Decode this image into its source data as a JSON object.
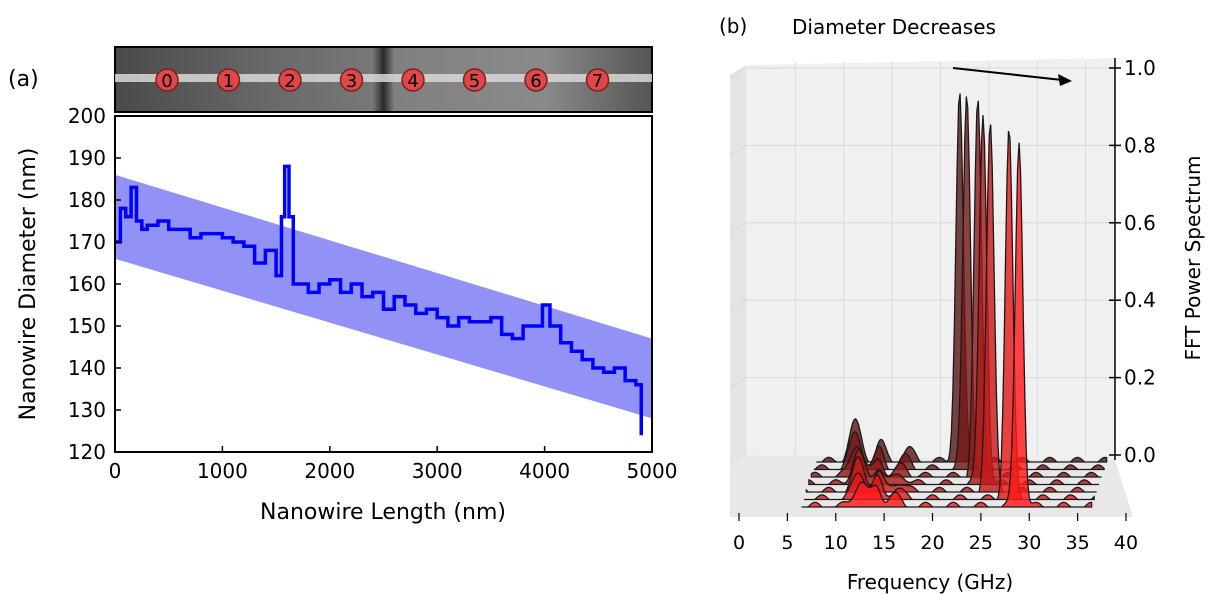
{
  "panel_a": {
    "panel_label": "(a)",
    "strip_markers": [
      "0",
      "1",
      "2",
      "3",
      "4",
      "5",
      "6",
      "7"
    ]
  },
  "panel_b": {
    "panel_label": "(b)",
    "title": "Diameter Decreases"
  },
  "colors": {
    "trace": "#0000ff",
    "band": "#7f7ff5",
    "marker": "#e04848",
    "peak_dark": "#5a1a1a",
    "peak_light": "#ff1a1a"
  },
  "chart_data": [
    {
      "type": "line",
      "title": "",
      "xlabel": "Nanowire Length (nm)",
      "ylabel": "Nanowire Diameter (nm)",
      "xlim": [
        0,
        5000
      ],
      "ylim": [
        120,
        200
      ],
      "x_ticks": [
        "0",
        "1000",
        "2000",
        "3000",
        "4000",
        "5000"
      ],
      "y_ticks": [
        "120",
        "130",
        "140",
        "150",
        "160",
        "170",
        "180",
        "190",
        "200"
      ],
      "band": {
        "x": [
          0,
          5000
        ],
        "upper": [
          186,
          147
        ],
        "lower": [
          166,
          128
        ]
      },
      "series": [
        {
          "x": [
            0,
            50,
            100,
            150,
            200,
            250,
            300,
            400,
            500,
            600,
            700,
            800,
            900,
            1000,
            1100,
            1200,
            1300,
            1400,
            1500,
            1550,
            1580,
            1620,
            1660,
            1700,
            1800,
            1900,
            2000,
            2100,
            2200,
            2300,
            2400,
            2500,
            2600,
            2700,
            2800,
            2900,
            3000,
            3100,
            3200,
            3300,
            3400,
            3500,
            3600,
            3700,
            3800,
            3900,
            3980,
            4050,
            4150,
            4250,
            4350,
            4450,
            4550,
            4650,
            4750,
            4850,
            4900
          ],
          "y": [
            170,
            178,
            176,
            183,
            175,
            173,
            174,
            175,
            173,
            173,
            171,
            172,
            172,
            171,
            170,
            169,
            165,
            168,
            162,
            176,
            188,
            176,
            160,
            160,
            158,
            160,
            161,
            158,
            160,
            157,
            158,
            154,
            157,
            155,
            153,
            154,
            152,
            150,
            152,
            151,
            151,
            152,
            148,
            147,
            150,
            150,
            155,
            150,
            146,
            144,
            142,
            140,
            139,
            140,
            137,
            136,
            124
          ]
        }
      ]
    },
    {
      "type": "area",
      "title": "Diameter Decreases",
      "xlabel": "Frequency (GHz)",
      "zlabel": "FFT Power Spectrum",
      "xlim": [
        0,
        40
      ],
      "zlim": [
        0,
        1
      ],
      "x_ticks": [
        "0",
        "5",
        "10",
        "15",
        "20",
        "25",
        "30",
        "35",
        "40"
      ],
      "z_ticks": [
        "0.0",
        "0.2",
        "0.4",
        "0.6",
        "0.8",
        "1.0"
      ],
      "series": [
        {
          "peak_ghz": 22.8,
          "amplitude": 0.96
        },
        {
          "peak_ghz": 23.8,
          "amplitude": 0.97
        },
        {
          "peak_ghz": 25.2,
          "amplitude": 0.97
        },
        {
          "peak_ghz": 26.0,
          "amplitude": 0.96
        },
        {
          "peak_ghz": 27.0,
          "amplitude": 0.95
        },
        {
          "peak_ghz": 29.2,
          "amplitude": 0.96
        },
        {
          "peak_ghz": 30.5,
          "amplitude": 0.95
        }
      ]
    }
  ]
}
